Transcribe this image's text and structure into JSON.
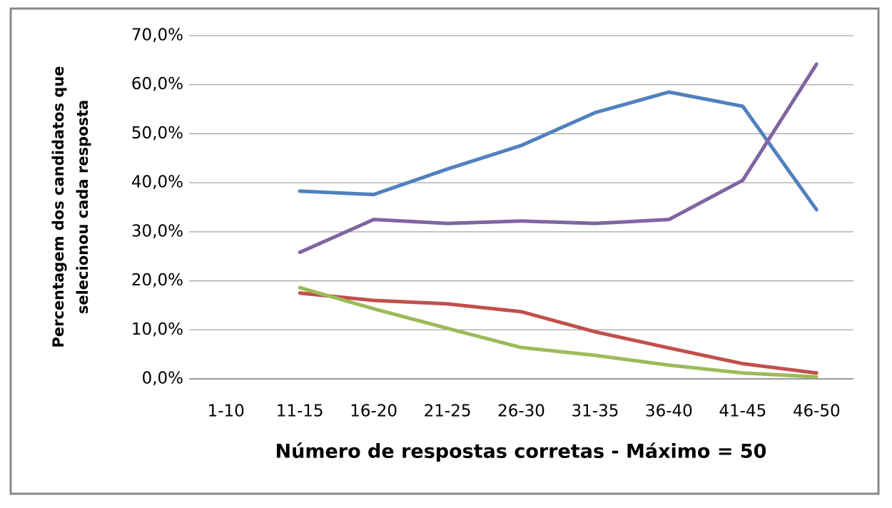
{
  "chart_data": {
    "type": "line",
    "x_label": "Número de respostas corretas - Máximo = 50",
    "y_label": [
      "Percentagem dos candidatos que",
      "selecionou cada resposta"
    ],
    "categories": [
      "1-10",
      "11-15",
      "16-20",
      "21-25",
      "26-30",
      "31-35",
      "36-40",
      "41-45",
      "46-50"
    ],
    "series": [
      {
        "color": "#4f81bd",
        "values": [
          null,
          38.3,
          37.6,
          42.8,
          47.6,
          54.3,
          58.5,
          55.6,
          34.5
        ]
      },
      {
        "color": "#8064a2",
        "values": [
          null,
          25.8,
          32.5,
          31.7,
          32.2,
          31.7,
          32.5,
          40.5,
          64.2
        ]
      },
      {
        "color": "#c0504d",
        "values": [
          null,
          17.5,
          16.0,
          15.3,
          13.7,
          9.6,
          6.3,
          3.1,
          1.2
        ]
      },
      {
        "color": "#9bbb59",
        "values": [
          null,
          18.6,
          14.3,
          10.3,
          6.4,
          4.8,
          2.8,
          1.2,
          0.4
        ]
      }
    ],
    "ylim": [
      0,
      70
    ],
    "yticks": [
      {
        "value": 0,
        "label": "0,0%"
      },
      {
        "value": 10,
        "label": "10,0%"
      },
      {
        "value": 20,
        "label": "20,0%"
      },
      {
        "value": 30,
        "label": "30,0%"
      },
      {
        "value": 40,
        "label": "40,0%"
      },
      {
        "value": 50,
        "label": "50,0%"
      },
      {
        "value": 60,
        "label": "60,0%"
      },
      {
        "value": 70,
        "label": "70,0%"
      }
    ],
    "grid": true
  }
}
